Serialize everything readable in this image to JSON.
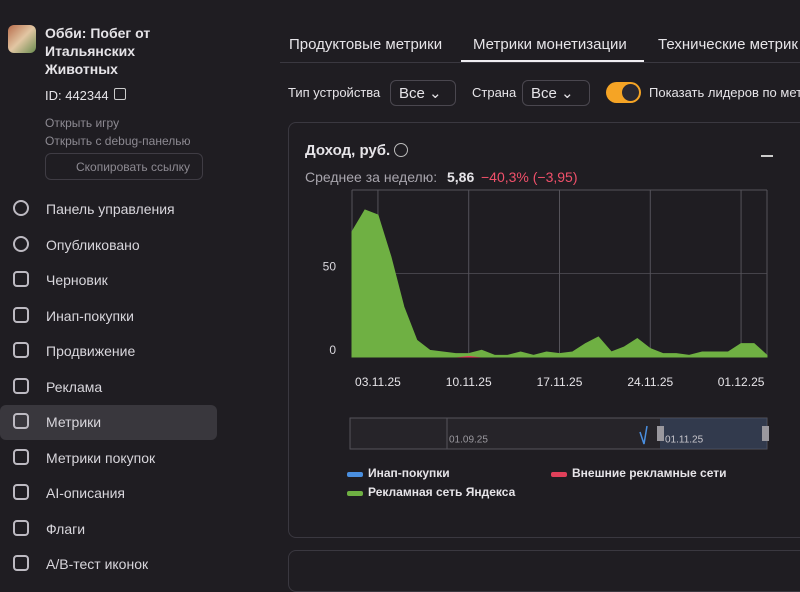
{
  "app": {
    "title": "Обби: Побег от Итальянских Животных",
    "id": "ID: 442344",
    "links": [
      "Открыть игру",
      "Открыть с debug-панелью"
    ],
    "copy_button": "Скопировать ссылку"
  },
  "nav": {
    "items": [
      "Панель управления",
      "Опубликовано",
      "Черновик",
      "Инап-покупки",
      "Продвижение",
      "Реклама",
      "Метрики",
      "Метрики покупок",
      "AI-описания",
      "Флаги",
      "A/B-тест иконок"
    ],
    "active": 6
  },
  "tabs": {
    "items": [
      "Продуктовые метрики",
      "Метрики монетизации",
      "Технические метрик"
    ],
    "active": 1
  },
  "filters": {
    "device_label": "Тип устройства",
    "device_value": "Все",
    "country_label": "Страна",
    "country_value": "Все",
    "toggle_label": "Показать лидеров по мет"
  },
  "card": {
    "title": "Доход, руб.",
    "summary_label": "Среднее за неделю:",
    "summary_value": "5,86",
    "summary_change": "−40,3% (−3,95)"
  },
  "navigator": {
    "labels": [
      "01.09.25",
      "01.11.25"
    ]
  },
  "chart_data": {
    "type": "area",
    "stacked": true,
    "x": [
      "01.11.25",
      "02.11.25",
      "03.11.25",
      "04.11.25",
      "05.11.25",
      "06.11.25",
      "07.11.25",
      "08.11.25",
      "09.11.25",
      "10.11.25",
      "11.11.25",
      "12.11.25",
      "13.11.25",
      "14.11.25",
      "15.11.25",
      "16.11.25",
      "17.11.25",
      "18.11.25",
      "19.11.25",
      "20.11.25",
      "21.11.25",
      "22.11.25",
      "23.11.25",
      "24.11.25",
      "25.11.25",
      "26.11.25",
      "27.11.25",
      "28.11.25",
      "29.11.25",
      "30.11.25",
      "01.12.25",
      "02.12.25",
      "03.12.25"
    ],
    "xticks": [
      "03.11.25",
      "10.11.25",
      "17.11.25",
      "24.11.25",
      "01.12.25"
    ],
    "ylim": [
      0,
      100
    ],
    "yticks": [
      0,
      50
    ],
    "grid": true,
    "series": [
      {
        "name": "Инап-покупки",
        "color": "#4a8fe0",
        "values": [
          0,
          0,
          0,
          0,
          0,
          0,
          0,
          0,
          0,
          0,
          0,
          0,
          0,
          0,
          0,
          0,
          0,
          0,
          0,
          0,
          0,
          0,
          0,
          0,
          0,
          0,
          0,
          0,
          0,
          0,
          0,
          0,
          0
        ]
      },
      {
        "name": "Внешние рекламные сети",
        "color": "#e0405a",
        "values": [
          0,
          0,
          0,
          0,
          0,
          0,
          0,
          0,
          0,
          1,
          0,
          0,
          0,
          0,
          0,
          0,
          0,
          0,
          0,
          0,
          0,
          0,
          0,
          0,
          0,
          0,
          0,
          0,
          0,
          0,
          0,
          0,
          0
        ]
      },
      {
        "name": "Рекламная сеть Яндекса",
        "color": "#6fb043",
        "values": [
          75,
          88,
          85,
          60,
          30,
          10,
          4,
          3,
          2,
          1,
          4,
          1,
          1,
          3,
          1,
          3,
          2,
          3,
          8,
          12,
          3,
          6,
          11,
          5,
          2,
          2,
          1,
          3,
          3,
          3,
          8,
          8,
          1
        ]
      }
    ]
  }
}
